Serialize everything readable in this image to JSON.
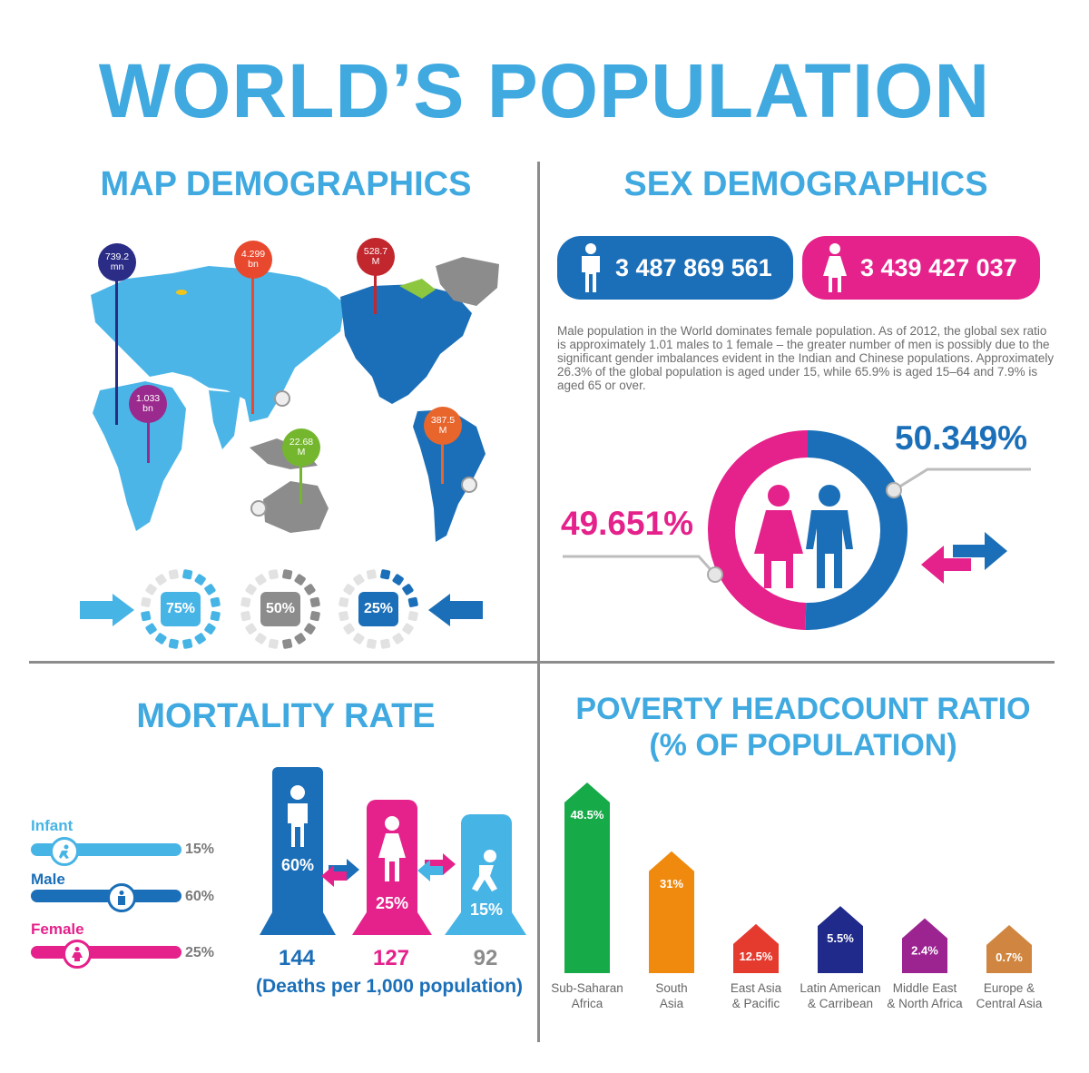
{
  "title": "WORLD’S POPULATION",
  "map": {
    "title": "MAP DEMOGRAPHICS",
    "pins": [
      {
        "line1": "739.2",
        "line2": "mn",
        "color": "#2a2c86"
      },
      {
        "line1": "1.033",
        "line2": "bn",
        "color": "#9b2a8e"
      },
      {
        "line1": "4.299",
        "line2": "bn",
        "color": "#e8492e"
      },
      {
        "line1": "22.68",
        "line2": "M",
        "color": "#74b72e"
      },
      {
        "line1": "528.7",
        "line2": "M",
        "color": "#c1272d"
      },
      {
        "line1": "387.5",
        "line2": "M",
        "color": "#e8652b"
      }
    ],
    "gauges": [
      {
        "label": "75%",
        "value": 75,
        "color": "#47b4e6"
      },
      {
        "label": "50%",
        "value": 50,
        "color": "#8c8c8c"
      },
      {
        "label": "25%",
        "value": 25,
        "color": "#1b6fb8"
      }
    ]
  },
  "sex": {
    "title": "SEX DEMOGRAPHICS",
    "male_count": "3 487 869 561",
    "female_count": "3 439 427 037",
    "paragraph": "Male population in the World dominates female population. As of 2012, the global sex ratio is approximately 1.01 males to 1 female – the greater number of men is possibly due to the significant gender imbalances evident in the Indian and Chinese populations. Approximately 26.3% of the global population is aged under 15, while 65.9% is aged 15–64 and 7.9% is aged 65 or over.",
    "male_pct": "50.349%",
    "female_pct": "49.651%",
    "male_share": 50.349,
    "male_color": "#1b6fb8",
    "female_color": "#e5218b"
  },
  "mortality": {
    "title": "MORTALITY RATE",
    "bars": [
      {
        "label": "Infant",
        "pct": "15%",
        "value": 15,
        "color": "#47b4e6"
      },
      {
        "label": "Male",
        "pct": "60%",
        "value": 60,
        "color": "#1b6fb8"
      },
      {
        "label": "Female",
        "pct": "25%",
        "value": 25,
        "color": "#e5218b"
      }
    ],
    "pillars": [
      {
        "pct": "60%",
        "deaths": "144",
        "color": "#1b6fb8"
      },
      {
        "pct": "25%",
        "deaths": "127",
        "color": "#e5218b"
      },
      {
        "pct": "15%",
        "deaths": "92",
        "color": "#47b4e6"
      }
    ],
    "deaths_label": "(Deaths per 1,000 population)"
  },
  "poverty": {
    "title_line1": "POVERTY HEADCOUNT RATIO",
    "title_line2": "(% OF POPULATION)",
    "chart_data": {
      "type": "bar",
      "categories": [
        "Sub-Saharan Africa",
        "South Asia",
        "East Asia & Pacific",
        "Latin American & Carribean",
        "Middle East & North Africa",
        "Europe & Central Asia"
      ],
      "labels_line1": [
        "Sub-Saharan",
        "South",
        "East Asia",
        "Latin American",
        "Middle East",
        "Europe &"
      ],
      "labels_line2": [
        "Africa",
        "Asia",
        "& Pacific",
        "& Carribean",
        "& North Africa",
        "Central Asia"
      ],
      "values": [
        48.5,
        31,
        12.5,
        5.5,
        2.4,
        0.7
      ],
      "value_labels": [
        "48.5%",
        "31%",
        "12.5%",
        "5.5%",
        "2.4%",
        "0.7%"
      ],
      "colors": [
        "#16ab48",
        "#f08a0f",
        "#e53b2f",
        "#1f2a8a",
        "#9b2490",
        "#d08640"
      ]
    }
  }
}
